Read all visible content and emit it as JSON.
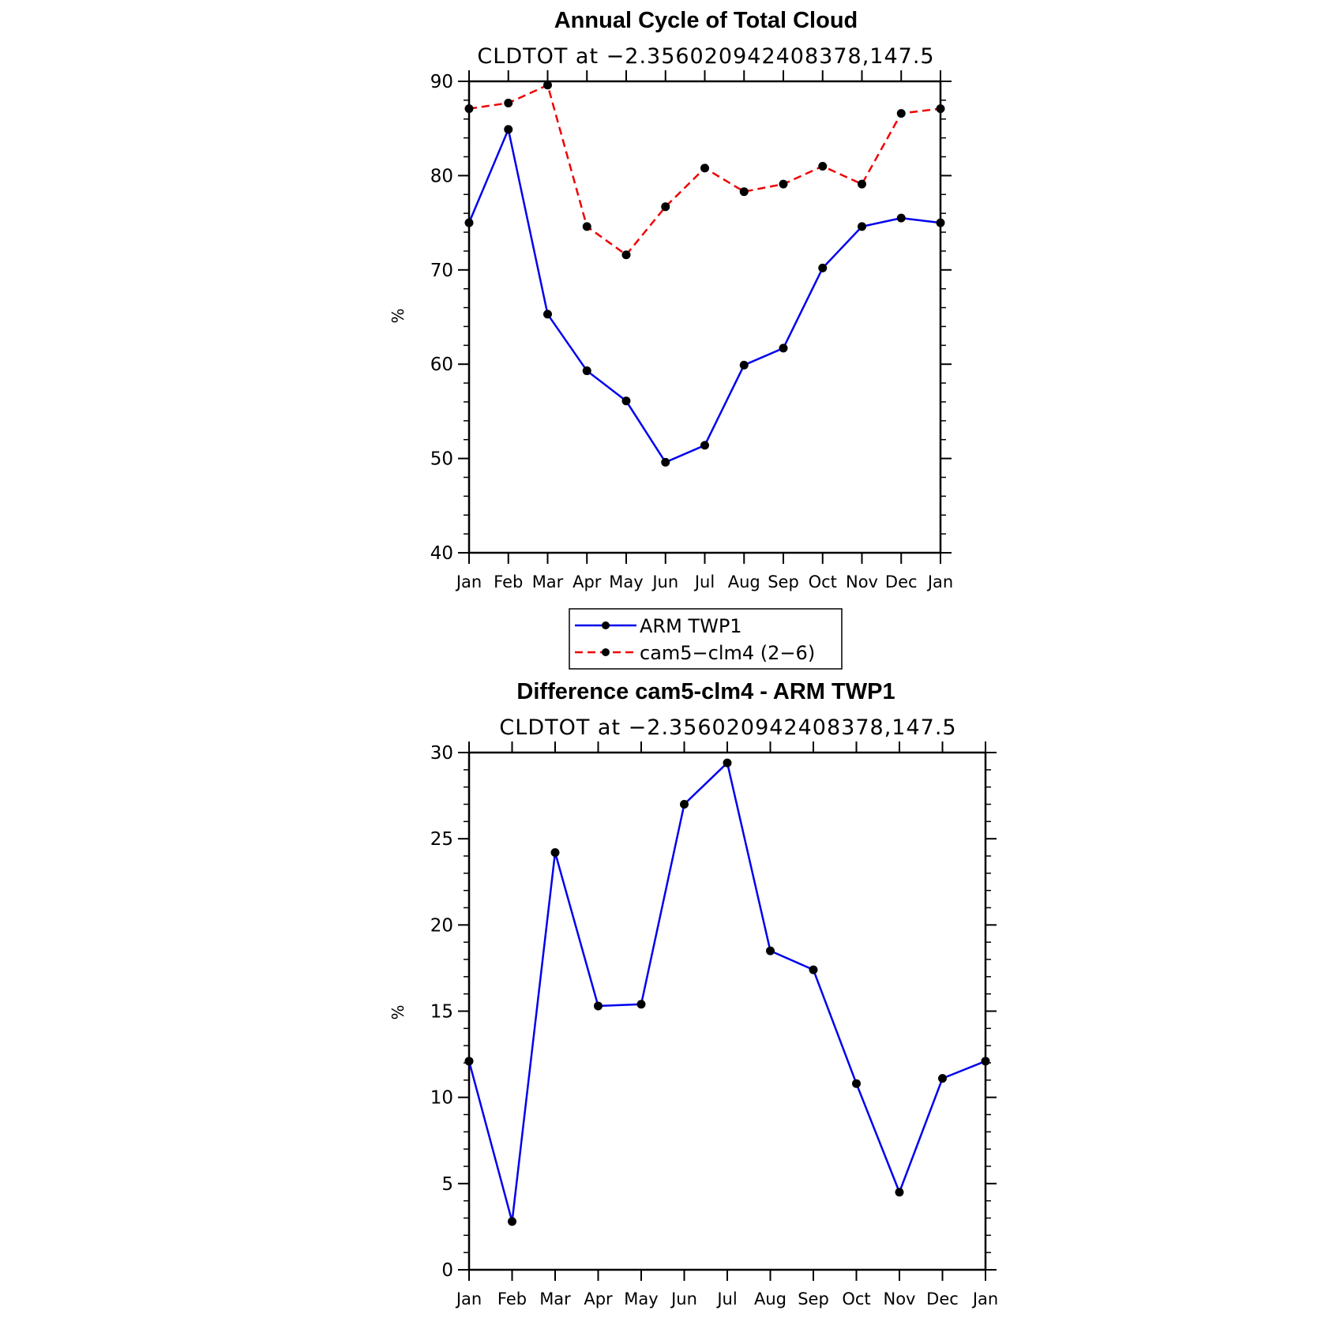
{
  "chart_data": [
    {
      "type": "line",
      "title": "Annual Cycle of Total Cloud",
      "subtitle": "CLDTOT at −2.356020942408378,147.5",
      "ylabel": "%",
      "ylim": [
        40,
        90
      ],
      "yticks": [
        "40",
        "50",
        "60",
        "70",
        "80",
        "90"
      ],
      "categories": [
        "Jan",
        "Feb",
        "Mar",
        "Apr",
        "May",
        "Jun",
        "Jul",
        "Aug",
        "Sep",
        "Oct",
        "Nov",
        "Dec",
        "Jan"
      ],
      "series": [
        {
          "name": "ARM TWP1",
          "color": "#0000ee",
          "dash": "solid",
          "values": [
            75.0,
            84.9,
            65.3,
            59.3,
            56.1,
            49.6,
            51.4,
            59.9,
            61.7,
            70.2,
            74.6,
            75.5,
            75.0
          ]
        },
        {
          "name": "cam5−clm4 (2−6)",
          "color": "#ee0000",
          "dash": "dashed",
          "values": [
            87.1,
            87.7,
            89.6,
            74.6,
            71.6,
            76.7,
            80.8,
            78.3,
            79.1,
            81.0,
            79.1,
            86.6,
            87.1
          ]
        }
      ],
      "legend": "below"
    },
    {
      "type": "line",
      "title": "Difference cam5-clm4 - ARM TWP1",
      "subtitle": "CLDTOT at −2.356020942408378,147.5",
      "ylabel": "%",
      "ylim": [
        0,
        30
      ],
      "yticks": [
        "0",
        "5",
        "10",
        "15",
        "20",
        "25",
        "30"
      ],
      "categories": [
        "Jan",
        "Feb",
        "Mar",
        "Apr",
        "May",
        "Jun",
        "Jul",
        "Aug",
        "Sep",
        "Oct",
        "Nov",
        "Dec",
        "Jan"
      ],
      "series": [
        {
          "color": "#0000ee",
          "dash": "solid",
          "values": [
            12.1,
            2.8,
            24.2,
            15.3,
            15.4,
            27.0,
            29.4,
            18.5,
            17.4,
            10.8,
            4.5,
            11.1,
            12.1
          ]
        }
      ]
    }
  ]
}
